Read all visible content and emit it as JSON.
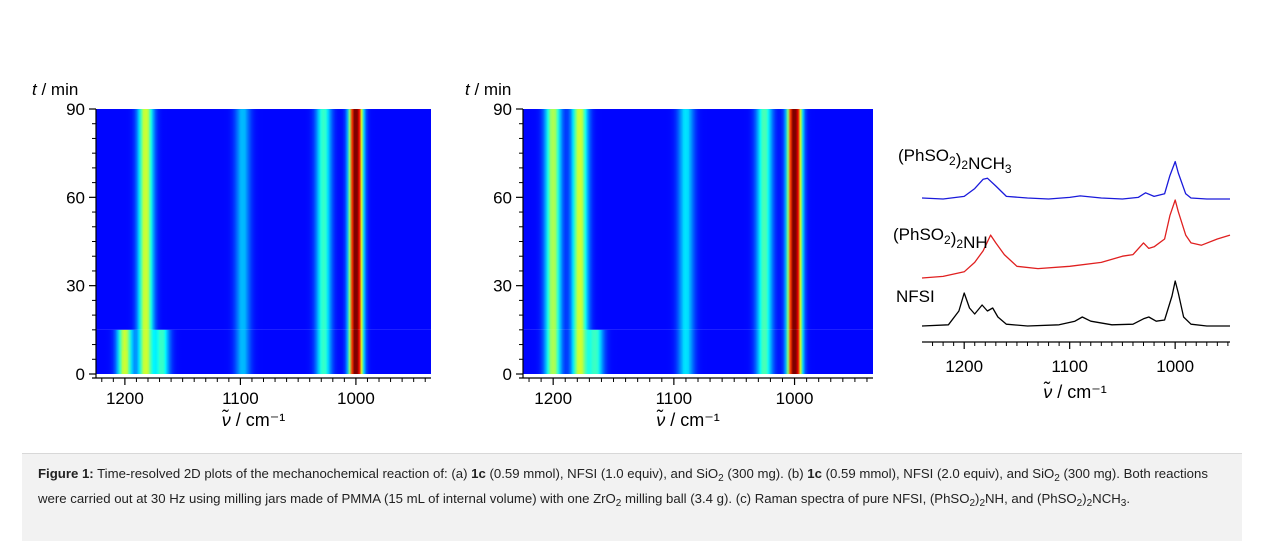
{
  "panels": [
    {
      "label": "(a)",
      "y_axis_label_var": "t",
      "y_axis_label_unit": " / min",
      "x_axis_label_var": "ν̃",
      "x_axis_label_unit": " / cm⁻¹"
    },
    {
      "label": "(b)",
      "y_axis_label_var": "t",
      "y_axis_label_unit": " / min",
      "x_axis_label_var": "ν̃",
      "x_axis_label_unit": " / cm⁻¹"
    },
    {
      "label": "(c)",
      "x_axis_label_var": "ν̃",
      "x_axis_label_unit": " / cm⁻¹"
    }
  ],
  "chart_data": [
    {
      "type": "heatmap",
      "panel": "(a)",
      "xlabel": "ν̃ / cm⁻¹",
      "ylabel": "t / min",
      "x_ticks": [
        1200,
        1100,
        1000
      ],
      "y_ticks": [
        0,
        30,
        60,
        90
      ],
      "xlim": [
        1225,
        935
      ],
      "ylim": [
        0,
        90
      ],
      "colormap": [
        "#00007f",
        "#0000ff",
        "#00ffff",
        "#ffff00",
        "#ff0000",
        "#7f0000"
      ],
      "bands": [
        {
          "center": 1200,
          "intensity": 0.45,
          "until_t": 8
        },
        {
          "center": 1182,
          "intensity": 0.45,
          "until_t": 90
        },
        {
          "center": 1168,
          "intensity": 0.3,
          "until_t": 15
        },
        {
          "center": 1098,
          "intensity": 0.18,
          "until_t": 90
        },
        {
          "center": 1028,
          "intensity": 0.3,
          "until_t": 90
        },
        {
          "center": 1000,
          "intensity": 1.0,
          "until_t": 90
        }
      ]
    },
    {
      "type": "heatmap",
      "panel": "(b)",
      "xlabel": "ν̃ / cm⁻¹",
      "ylabel": "t / min",
      "x_ticks": [
        1200,
        1100,
        1000
      ],
      "y_ticks": [
        0,
        30,
        60,
        90
      ],
      "xlim": [
        1225,
        935
      ],
      "ylim": [
        0,
        90
      ],
      "colormap": [
        "#00007f",
        "#0000ff",
        "#00ffff",
        "#ffff00",
        "#ff0000",
        "#7f0000"
      ],
      "bands": [
        {
          "center": 1200,
          "intensity": 0.42,
          "until_t": 90
        },
        {
          "center": 1178,
          "intensity": 0.45,
          "until_t": 90
        },
        {
          "center": 1165,
          "intensity": 0.3,
          "until_t": 15
        },
        {
          "center": 1090,
          "intensity": 0.22,
          "until_t": 90
        },
        {
          "center": 1025,
          "intensity": 0.32,
          "until_t": 90
        },
        {
          "center": 1000,
          "intensity": 1.0,
          "until_t": 90
        }
      ]
    },
    {
      "type": "line",
      "panel": "(c)",
      "xlabel": "ν̃ / cm⁻¹",
      "x_ticks": [
        1200,
        1100,
        1000
      ],
      "xlim": [
        1240,
        948
      ],
      "series": [
        {
          "name": "NFSI",
          "color": "#000000",
          "x": [
            1240,
            1215,
            1205,
            1200,
            1195,
            1190,
            1183,
            1178,
            1173,
            1168,
            1160,
            1140,
            1110,
            1095,
            1088,
            1080,
            1060,
            1040,
            1030,
            1025,
            1018,
            1010,
            1003,
            1000,
            997,
            992,
            985,
            970,
            948
          ],
          "y": [
            0.0,
            0.02,
            0.25,
            0.55,
            0.3,
            0.2,
            0.35,
            0.25,
            0.3,
            0.15,
            0.03,
            0.0,
            0.02,
            0.08,
            0.15,
            0.08,
            0.02,
            0.03,
            0.12,
            0.15,
            0.08,
            0.1,
            0.5,
            0.75,
            0.55,
            0.15,
            0.03,
            0.0,
            0.0
          ]
        },
        {
          "name": "(PhSO₂)₂NH",
          "color": "#e02020",
          "x": [
            1240,
            1220,
            1200,
            1190,
            1182,
            1175,
            1170,
            1162,
            1150,
            1130,
            1100,
            1070,
            1050,
            1040,
            1030,
            1025,
            1020,
            1010,
            1005,
            1000,
            997,
            990,
            985,
            975,
            960,
            948
          ],
          "y": [
            0.0,
            0.02,
            0.08,
            0.2,
            0.35,
            0.55,
            0.45,
            0.3,
            0.15,
            0.12,
            0.15,
            0.2,
            0.28,
            0.3,
            0.45,
            0.38,
            0.4,
            0.5,
            0.8,
            1.0,
            0.85,
            0.55,
            0.45,
            0.42,
            0.5,
            0.55
          ]
        },
        {
          "name": "(PhSO₂)₂NCH₃",
          "color": "#1a1adb",
          "x": [
            1240,
            1220,
            1200,
            1190,
            1182,
            1178,
            1170,
            1160,
            1140,
            1120,
            1100,
            1090,
            1070,
            1050,
            1035,
            1028,
            1020,
            1010,
            1005,
            1000,
            997,
            990,
            985,
            970,
            948
          ],
          "y": [
            0.02,
            0.0,
            0.05,
            0.2,
            0.38,
            0.4,
            0.25,
            0.05,
            0.02,
            0.0,
            0.03,
            0.06,
            0.02,
            0.0,
            0.03,
            0.12,
            0.05,
            0.1,
            0.45,
            0.72,
            0.5,
            0.1,
            0.02,
            0.0,
            0.0
          ]
        }
      ]
    }
  ],
  "caption": {
    "fig_label": "Figure 1:",
    "t1": " Time-resolved 2D plots of the mechanochemical reaction of: (a) ",
    "c1": "1c",
    "t2": " (0.59 mmol), NFSI (1.0 equiv), and SiO",
    "s1": "2",
    "t3": " (300 mg). (b) ",
    "c2": "1c",
    "t4": " (0.59 mmol), NFSI (2.0 equiv), and SiO",
    "s2": "2",
    "t5": " (300 mg). Both reactions were carried out at 30 Hz using milling jars made of PMMA (15 mL of internal volume) with one ZrO",
    "s3": "2",
    "t6": " milling ball (3.4 g). (c) Raman spectra of pure NFSI, (PhSO",
    "s4": "2",
    "t7": ")",
    "s5": "2",
    "t8": "NH, and (PhSO",
    "s6": "2",
    "t9": ")",
    "s7": "2",
    "t10": "NCH",
    "s8": "3",
    "t11": "."
  }
}
